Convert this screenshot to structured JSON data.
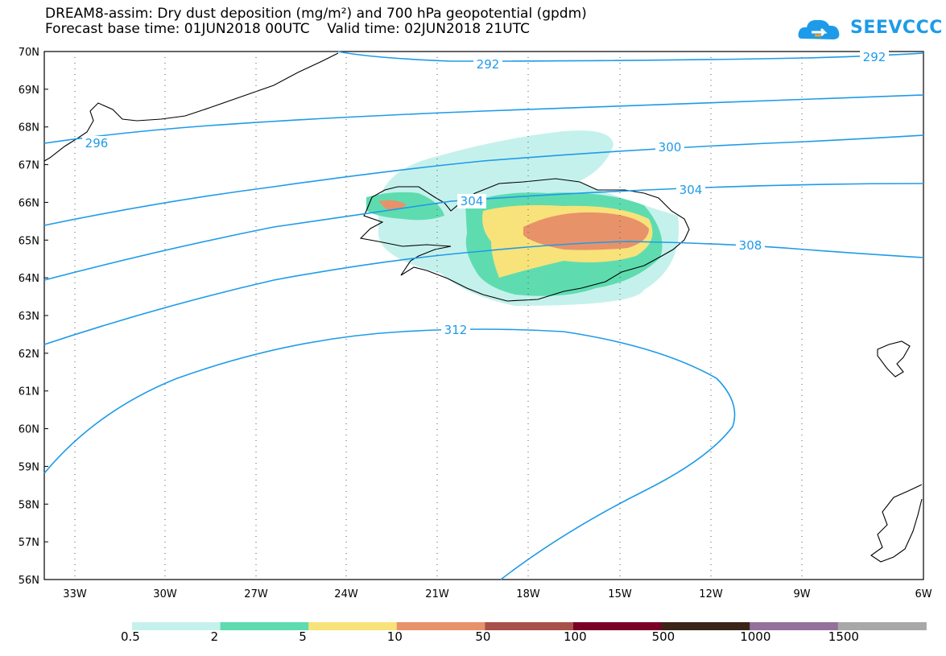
{
  "header": {
    "title_line1": "DREAM8-assim: Dry dust deposition (mg/m²) and 700 hPa geopotential (gpdm)",
    "title_line2": "Forecast base time: 01JUN2018 00UTC    Valid time: 02JUN2018 21UTC"
  },
  "logo": {
    "text": "SEEVCCC",
    "icon": "cloud-arrow-icon"
  },
  "map": {
    "lat_labels": [
      "70N",
      "69N",
      "68N",
      "67N",
      "66N",
      "65N",
      "64N",
      "63N",
      "62N",
      "61N",
      "60N",
      "59N",
      "58N",
      "57N",
      "56N"
    ],
    "lon_labels": [
      "33W",
      "30W",
      "27W",
      "24W",
      "21W",
      "18W",
      "15W",
      "12W",
      "9W",
      "6W"
    ],
    "contour_color": "#1e9be8",
    "contour_labels": [
      "292",
      "292",
      "296",
      "300",
      "304",
      "304",
      "308",
      "312"
    ]
  },
  "colorbar": {
    "colors": [
      "#c5f1ec",
      "#5edcb0",
      "#f8e27a",
      "#e8926a",
      "#a8504a",
      "#7a0028",
      "#3a2418",
      "#94709a",
      "#a8a8a8"
    ],
    "labels": [
      "0.5",
      "2",
      "5",
      "10",
      "50",
      "100",
      "500",
      "1000",
      "1500"
    ]
  }
}
